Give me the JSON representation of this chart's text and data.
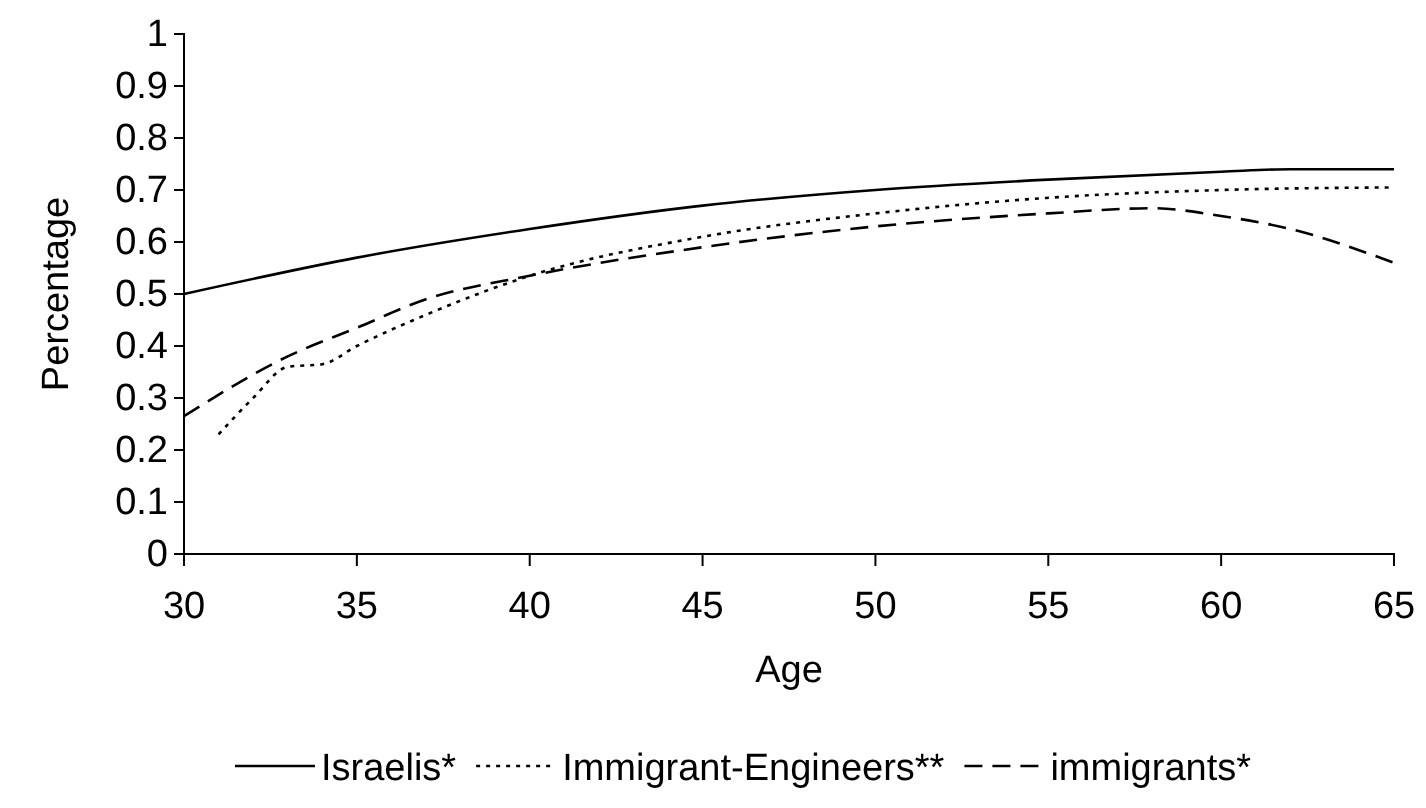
{
  "chart_data": {
    "type": "line",
    "xlabel": "Age",
    "ylabel": "Percentage",
    "xlim": [
      30,
      65
    ],
    "xticks": [
      30,
      35,
      40,
      45,
      50,
      55,
      60,
      65
    ],
    "ylim": [
      0,
      1
    ],
    "yticks": [
      0,
      0.1,
      0.2,
      0.3,
      0.4,
      0.5,
      0.6,
      0.7,
      0.8,
      0.9,
      1
    ],
    "legend": "bottom",
    "grid": false,
    "series": [
      {
        "name": "Israelis*",
        "color": "#000000",
        "line_style": "solid",
        "x": [
          30,
          35,
          40,
          45,
          50,
          55,
          60,
          62,
          65
        ],
        "values": [
          0.5,
          0.57,
          0.625,
          0.67,
          0.7,
          0.72,
          0.735,
          0.74,
          0.74
        ]
      },
      {
        "name": "Immigrant-Engineers**",
        "color": "#000000",
        "line_style": "dotted",
        "x": [
          31,
          32,
          33,
          34,
          35,
          37,
          40,
          45,
          50,
          55,
          60,
          65
        ],
        "values": [
          0.23,
          0.3,
          0.36,
          0.365,
          0.4,
          0.46,
          0.535,
          0.61,
          0.655,
          0.685,
          0.7,
          0.705
        ]
      },
      {
        "name": "immigrants*",
        "color": "#000000",
        "line_style": "dashed",
        "x": [
          30,
          33,
          35,
          37,
          40,
          45,
          50,
          55,
          58,
          60,
          62,
          65
        ],
        "values": [
          0.265,
          0.38,
          0.435,
          0.49,
          0.535,
          0.59,
          0.63,
          0.655,
          0.665,
          0.65,
          0.625,
          0.56
        ]
      }
    ]
  }
}
